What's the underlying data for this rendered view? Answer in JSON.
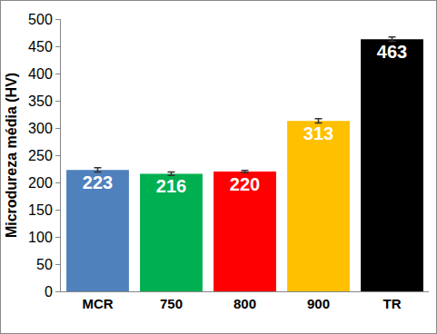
{
  "chart_data": {
    "type": "bar",
    "y_label": "Microdureza média (HV)",
    "categories": [
      "MCR",
      "750",
      "800",
      "900",
      "TR"
    ],
    "values": [
      223,
      216,
      220,
      313,
      463
    ],
    "errors": [
      4,
      3,
      2,
      4,
      4
    ],
    "colors": [
      "#4f81bd",
      "#00b050",
      "#ff0000",
      "#ffc000",
      "#000000"
    ],
    "ylim": [
      0,
      500
    ],
    "yticks": [
      0,
      50,
      100,
      150,
      200,
      250,
      300,
      350,
      400,
      450,
      500
    ],
    "grid": false,
    "data_labels": true
  }
}
